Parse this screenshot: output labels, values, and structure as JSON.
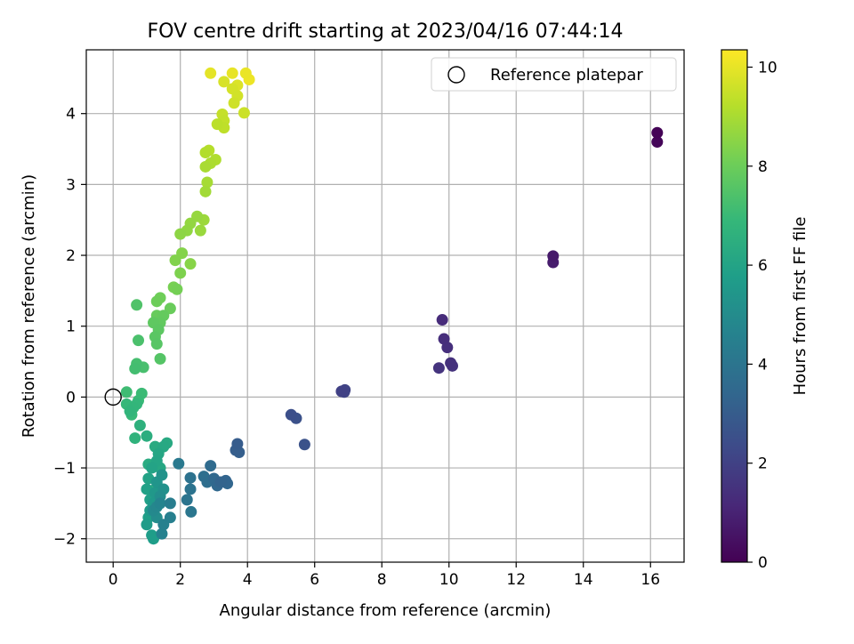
{
  "chart_data": {
    "type": "scatter",
    "title": "FOV centre drift starting at 2023/04/16 07:44:14",
    "xlabel": "Angular distance from reference (arcmin)",
    "ylabel": "Rotation from reference (arcmin)",
    "xlim": [
      -0.8,
      17.0
    ],
    "ylim": [
      -2.33,
      4.9
    ],
    "xticks": [
      0,
      2,
      4,
      6,
      8,
      10,
      12,
      14,
      16
    ],
    "yticks": [
      -2,
      -1,
      0,
      1,
      2,
      3,
      4
    ],
    "grid": true,
    "legend": {
      "position": "upper right",
      "entries": [
        "Reference platepar"
      ]
    },
    "reference_point": {
      "x": 0,
      "y": 0
    },
    "colorbar": {
      "label": "Hours from first FF file",
      "colormap": "viridis",
      "range": [
        0,
        10.35
      ],
      "ticks": [
        0,
        2,
        4,
        6,
        8,
        10
      ]
    },
    "marker_color_scale": [
      "#440154",
      "#482878",
      "#3e4a89",
      "#31688e",
      "#26828e",
      "#1f9e89",
      "#35b779",
      "#6ece58",
      "#b5de2b",
      "#fde725"
    ],
    "points": [
      {
        "x": 16.2,
        "y": 3.73,
        "h": 0.05
      },
      {
        "x": 16.2,
        "y": 3.6,
        "h": 0.15
      },
      {
        "x": 13.1,
        "y": 1.99,
        "h": 0.7
      },
      {
        "x": 13.1,
        "y": 1.9,
        "h": 0.8
      },
      {
        "x": 9.8,
        "y": 1.09,
        "h": 1.3
      },
      {
        "x": 9.85,
        "y": 0.82,
        "h": 1.35
      },
      {
        "x": 9.95,
        "y": 0.7,
        "h": 1.4
      },
      {
        "x": 10.05,
        "y": 0.48,
        "h": 1.45
      },
      {
        "x": 10.1,
        "y": 0.44,
        "h": 1.5
      },
      {
        "x": 9.7,
        "y": 0.41,
        "h": 1.55
      },
      {
        "x": 6.8,
        "y": 0.08,
        "h": 2.0
      },
      {
        "x": 6.9,
        "y": 0.1,
        "h": 2.05
      },
      {
        "x": 6.88,
        "y": 0.07,
        "h": 2.1
      },
      {
        "x": 5.3,
        "y": -0.25,
        "h": 2.5
      },
      {
        "x": 5.45,
        "y": -0.3,
        "h": 2.55
      },
      {
        "x": 5.7,
        "y": -0.67,
        "h": 2.6
      },
      {
        "x": 3.7,
        "y": -0.66,
        "h": 3.0
      },
      {
        "x": 3.65,
        "y": -0.75,
        "h": 3.05
      },
      {
        "x": 3.75,
        "y": -0.78,
        "h": 3.1
      },
      {
        "x": 3.2,
        "y": -1.2,
        "h": 3.3
      },
      {
        "x": 3.35,
        "y": -1.18,
        "h": 3.35
      },
      {
        "x": 3.4,
        "y": -1.22,
        "h": 3.4
      },
      {
        "x": 3.1,
        "y": -1.25,
        "h": 3.45
      },
      {
        "x": 3.0,
        "y": -1.15,
        "h": 3.5
      },
      {
        "x": 2.9,
        "y": -0.97,
        "h": 3.6
      },
      {
        "x": 2.8,
        "y": -1.2,
        "h": 3.7
      },
      {
        "x": 2.7,
        "y": -1.12,
        "h": 3.75
      },
      {
        "x": 2.3,
        "y": -1.14,
        "h": 3.9
      },
      {
        "x": 2.3,
        "y": -1.3,
        "h": 3.95
      },
      {
        "x": 2.2,
        "y": -1.45,
        "h": 4.0
      },
      {
        "x": 2.32,
        "y": -1.62,
        "h": 4.05
      },
      {
        "x": 1.95,
        "y": -0.94,
        "h": 4.2
      },
      {
        "x": 1.7,
        "y": -1.5,
        "h": 4.4
      },
      {
        "x": 1.7,
        "y": -1.7,
        "h": 4.45
      },
      {
        "x": 1.5,
        "y": -1.8,
        "h": 4.5
      },
      {
        "x": 1.45,
        "y": -1.93,
        "h": 4.55
      },
      {
        "x": 1.4,
        "y": -1.5,
        "h": 4.7
      },
      {
        "x": 1.3,
        "y": -1.55,
        "h": 4.8
      },
      {
        "x": 1.2,
        "y": -1.6,
        "h": 4.9
      },
      {
        "x": 1.3,
        "y": -1.7,
        "h": 5.0
      },
      {
        "x": 1.4,
        "y": -1.4,
        "h": 5.1
      },
      {
        "x": 1.5,
        "y": -1.3,
        "h": 5.2
      },
      {
        "x": 1.45,
        "y": -1.1,
        "h": 5.3
      },
      {
        "x": 1.3,
        "y": -1.2,
        "h": 5.4
      },
      {
        "x": 1.25,
        "y": -1.35,
        "h": 5.5
      },
      {
        "x": 1.2,
        "y": -1.5,
        "h": 5.55
      },
      {
        "x": 1.1,
        "y": -1.6,
        "h": 5.6
      },
      {
        "x": 1.0,
        "y": -1.8,
        "h": 5.65
      },
      {
        "x": 1.15,
        "y": -1.95,
        "h": 5.7
      },
      {
        "x": 1.2,
        "y": -2.0,
        "h": 5.75
      },
      {
        "x": 1.05,
        "y": -1.7,
        "h": 5.8
      },
      {
        "x": 1.1,
        "y": -1.45,
        "h": 5.85
      },
      {
        "x": 1.0,
        "y": -1.3,
        "h": 5.9
      },
      {
        "x": 1.05,
        "y": -1.15,
        "h": 5.95
      },
      {
        "x": 1.15,
        "y": -1.0,
        "h": 6.0
      },
      {
        "x": 1.3,
        "y": -0.9,
        "h": 6.05
      },
      {
        "x": 1.35,
        "y": -0.8,
        "h": 6.1
      },
      {
        "x": 1.4,
        "y": -1.0,
        "h": 6.15
      },
      {
        "x": 1.5,
        "y": -0.7,
        "h": 6.2
      },
      {
        "x": 1.6,
        "y": -0.65,
        "h": 6.25
      },
      {
        "x": 1.25,
        "y": -0.7,
        "h": 6.3
      },
      {
        "x": 1.05,
        "y": -0.95,
        "h": 6.35
      },
      {
        "x": 1.0,
        "y": -0.55,
        "h": 6.45
      },
      {
        "x": 1.25,
        "y": -1.3,
        "h": 6.5
      },
      {
        "x": 0.8,
        "y": -0.4,
        "h": 6.6
      },
      {
        "x": 0.65,
        "y": -0.58,
        "h": 6.65
      },
      {
        "x": 0.5,
        "y": -0.2,
        "h": 6.75
      },
      {
        "x": 0.6,
        "y": -0.15,
        "h": 6.8
      },
      {
        "x": 0.7,
        "y": -0.1,
        "h": 6.85
      },
      {
        "x": 0.4,
        "y": -0.1,
        "h": 6.9
      },
      {
        "x": 0.55,
        "y": -0.25,
        "h": 6.95
      },
      {
        "x": 0.75,
        "y": -0.05,
        "h": 7.0
      },
      {
        "x": 0.85,
        "y": 0.05,
        "h": 7.05
      },
      {
        "x": 0.4,
        "y": 0.07,
        "h": 7.1
      },
      {
        "x": 0.65,
        "y": 0.4,
        "h": 7.2
      },
      {
        "x": 0.7,
        "y": 0.47,
        "h": 7.25
      },
      {
        "x": 0.9,
        "y": 0.42,
        "h": 7.3
      },
      {
        "x": 0.75,
        "y": 0.8,
        "h": 7.35
      },
      {
        "x": 0.7,
        "y": 1.3,
        "h": 7.45
      },
      {
        "x": 1.4,
        "y": 0.54,
        "h": 7.55
      },
      {
        "x": 1.3,
        "y": 0.75,
        "h": 7.6
      },
      {
        "x": 1.25,
        "y": 0.85,
        "h": 7.65
      },
      {
        "x": 1.35,
        "y": 0.95,
        "h": 7.7
      },
      {
        "x": 1.2,
        "y": 1.05,
        "h": 7.75
      },
      {
        "x": 1.4,
        "y": 1.05,
        "h": 7.8
      },
      {
        "x": 1.5,
        "y": 1.15,
        "h": 7.85
      },
      {
        "x": 1.3,
        "y": 1.15,
        "h": 7.9
      },
      {
        "x": 1.7,
        "y": 1.25,
        "h": 7.95
      },
      {
        "x": 1.3,
        "y": 1.35,
        "h": 8.0
      },
      {
        "x": 1.4,
        "y": 1.4,
        "h": 8.05
      },
      {
        "x": 1.9,
        "y": 1.52,
        "h": 8.15
      },
      {
        "x": 1.8,
        "y": 1.55,
        "h": 8.2
      },
      {
        "x": 2.0,
        "y": 1.75,
        "h": 8.3
      },
      {
        "x": 1.85,
        "y": 1.93,
        "h": 8.35
      },
      {
        "x": 2.05,
        "y": 2.03,
        "h": 8.4
      },
      {
        "x": 2.3,
        "y": 1.88,
        "h": 8.45
      },
      {
        "x": 2.0,
        "y": 2.3,
        "h": 8.55
      },
      {
        "x": 2.2,
        "y": 2.35,
        "h": 8.6
      },
      {
        "x": 2.3,
        "y": 2.45,
        "h": 8.65
      },
      {
        "x": 2.5,
        "y": 2.55,
        "h": 8.7
      },
      {
        "x": 2.6,
        "y": 2.35,
        "h": 8.75
      },
      {
        "x": 2.7,
        "y": 2.5,
        "h": 8.8
      },
      {
        "x": 2.75,
        "y": 2.9,
        "h": 8.9
      },
      {
        "x": 2.8,
        "y": 3.03,
        "h": 8.95
      },
      {
        "x": 2.75,
        "y": 3.25,
        "h": 9.0
      },
      {
        "x": 2.9,
        "y": 3.3,
        "h": 9.05
      },
      {
        "x": 3.05,
        "y": 3.35,
        "h": 9.1
      },
      {
        "x": 2.75,
        "y": 3.45,
        "h": 9.15
      },
      {
        "x": 2.85,
        "y": 3.48,
        "h": 9.2
      },
      {
        "x": 3.1,
        "y": 3.85,
        "h": 9.3
      },
      {
        "x": 3.3,
        "y": 3.8,
        "h": 9.35
      },
      {
        "x": 3.3,
        "y": 3.9,
        "h": 9.4
      },
      {
        "x": 3.25,
        "y": 3.99,
        "h": 9.45
      },
      {
        "x": 3.9,
        "y": 4.01,
        "h": 9.55
      },
      {
        "x": 3.6,
        "y": 4.15,
        "h": 9.6
      },
      {
        "x": 3.7,
        "y": 4.25,
        "h": 9.65
      },
      {
        "x": 3.55,
        "y": 4.35,
        "h": 9.7
      },
      {
        "x": 3.3,
        "y": 4.45,
        "h": 9.75
      },
      {
        "x": 3.7,
        "y": 4.4,
        "h": 9.8
      },
      {
        "x": 2.9,
        "y": 4.57,
        "h": 9.95
      },
      {
        "x": 3.55,
        "y": 4.57,
        "h": 10.0
      },
      {
        "x": 3.95,
        "y": 4.57,
        "h": 10.05
      },
      {
        "x": 4.05,
        "y": 4.48,
        "h": 10.1
      }
    ]
  }
}
